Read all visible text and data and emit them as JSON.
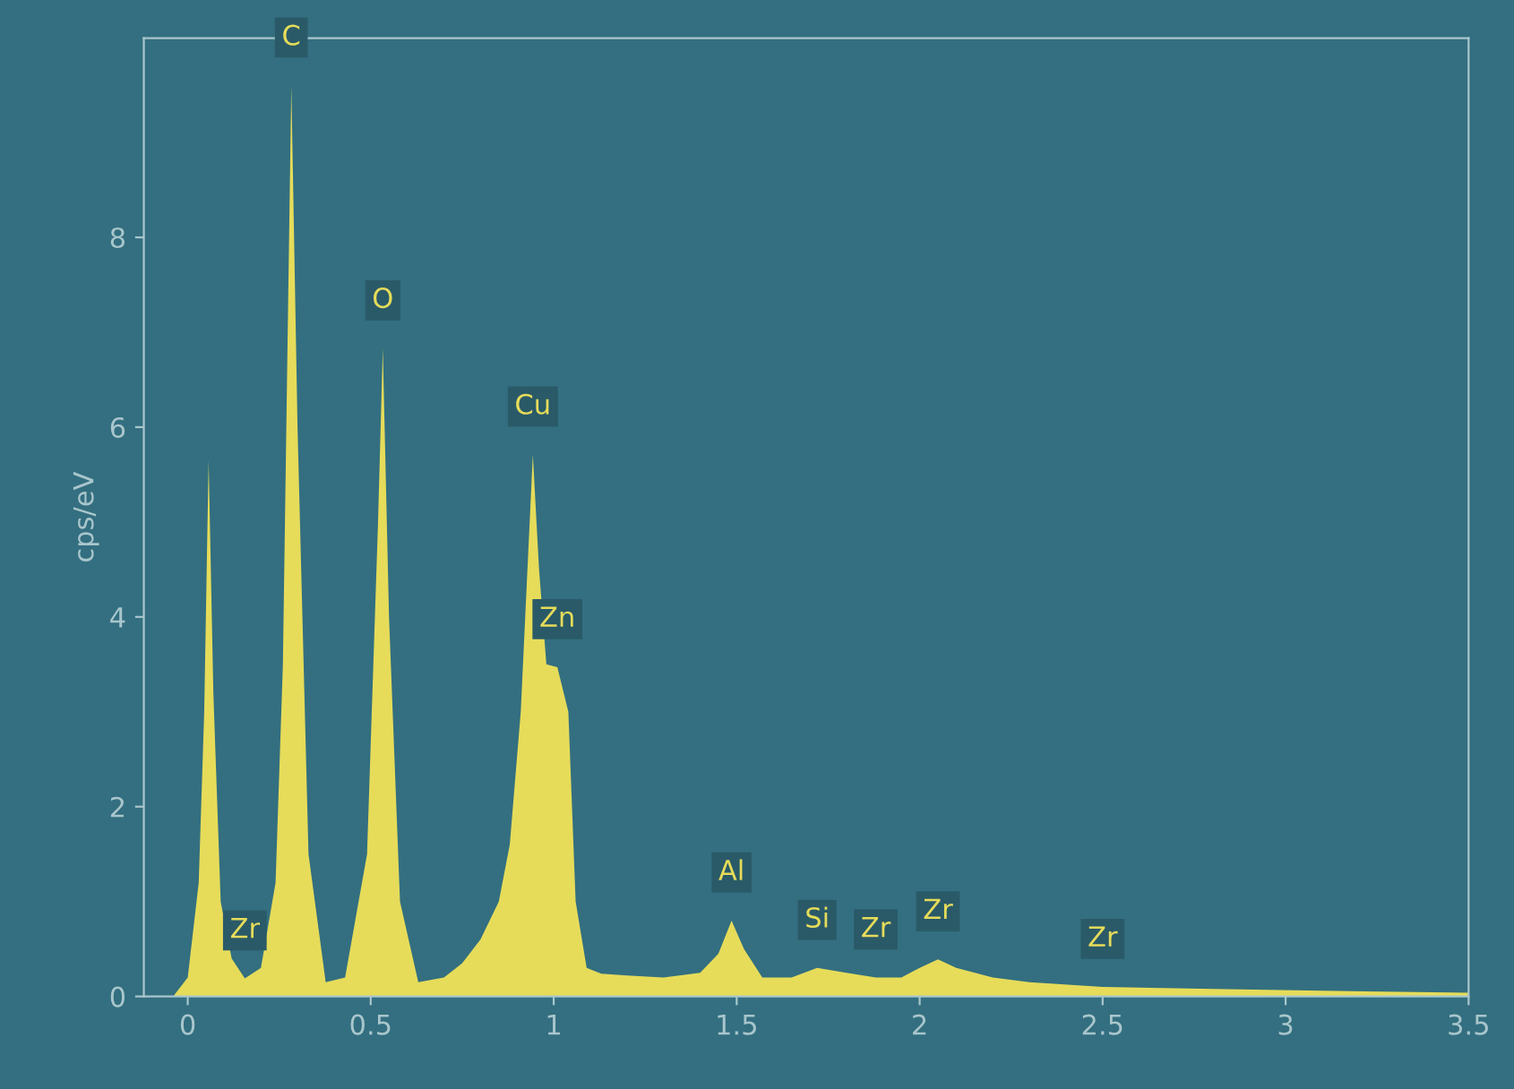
{
  "chart_data": {
    "type": "area",
    "ylabel": "cps/eV",
    "x": [
      -0.04,
      0.0,
      0.03,
      0.045,
      0.057,
      0.07,
      0.09,
      0.12,
      0.156,
      0.2,
      0.24,
      0.26,
      0.283,
      0.3,
      0.33,
      0.377,
      0.43,
      0.49,
      0.52,
      0.533,
      0.55,
      0.58,
      0.63,
      0.7,
      0.75,
      0.8,
      0.85,
      0.88,
      0.91,
      0.943,
      0.96,
      0.98,
      1.01,
      1.04,
      1.06,
      1.09,
      1.13,
      1.2,
      1.3,
      1.4,
      1.45,
      1.486,
      1.52,
      1.57,
      1.65,
      1.72,
      1.8,
      1.88,
      1.95,
      2.0,
      2.05,
      2.1,
      2.2,
      2.3,
      2.5,
      2.8,
      3.1,
      3.5
    ],
    "series": [
      {
        "color": "#e6dc5a",
        "values": [
          0,
          0.2,
          1.2,
          3.0,
          5.65,
          3.2,
          1.0,
          0.4,
          0.19,
          0.3,
          1.2,
          3.5,
          9.6,
          6.0,
          1.5,
          0.15,
          0.2,
          1.5,
          5.0,
          6.83,
          4.0,
          1.0,
          0.15,
          0.2,
          0.35,
          0.6,
          1.0,
          1.6,
          3.0,
          5.71,
          4.5,
          3.5,
          3.47,
          3.0,
          1.0,
          0.3,
          0.24,
          0.22,
          0.2,
          0.25,
          0.45,
          0.8,
          0.5,
          0.2,
          0.2,
          0.3,
          0.25,
          0.2,
          0.2,
          0.3,
          0.39,
          0.3,
          0.2,
          0.15,
          0.1,
          0.08,
          0.06,
          0.04
        ]
      }
    ],
    "xlim": [
      -0.12,
      3.5
    ],
    "ylim": [
      0,
      10.1
    ],
    "xticks": [
      0,
      0.5,
      1,
      1.5,
      2,
      2.5,
      3,
      3.5
    ],
    "yticks": [
      0,
      2,
      4,
      6,
      8
    ],
    "annotations": [
      {
        "text": "Zr",
        "x": 0.156,
        "y": 0.19
      },
      {
        "text": "C",
        "x": 0.283,
        "y": 9.6
      },
      {
        "text": "O",
        "x": 0.533,
        "y": 6.83
      },
      {
        "text": "Cu",
        "x": 0.943,
        "y": 5.71
      },
      {
        "text": "Zn",
        "x": 1.01,
        "y": 3.47
      },
      {
        "text": "Al",
        "x": 1.486,
        "y": 0.8
      },
      {
        "text": "Si",
        "x": 1.72,
        "y": 0.3
      },
      {
        "text": "Zr",
        "x": 1.88,
        "y": 0.2
      },
      {
        "text": "Zr",
        "x": 2.05,
        "y": 0.39
      },
      {
        "text": "Zr",
        "x": 2.5,
        "y": 0.1
      }
    ]
  }
}
